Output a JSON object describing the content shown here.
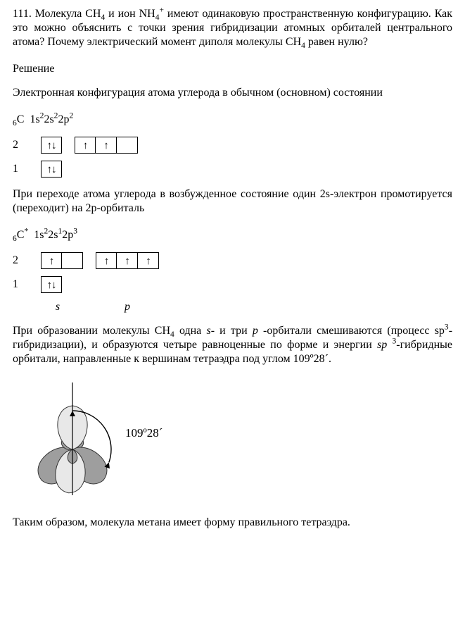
{
  "problem": {
    "number": "111.",
    "text_html": "Молекула CH<sub>4</sub> и ион NH<sub>4</sub><sup>+</sup> имеют одинаковую пространственную конфигурацию. Как это можно объяснить с точки зрения гибридизации атомных орбиталей центрального атома? Почему электрический момент диполя молекулы CH<sub>4</sub> равен нулю?"
  },
  "solution_label": "Решение",
  "p1_html": "Электронная конфигурация атома углерода в обычном (основном) состоянии",
  "config1_html": "<sub>6</sub>C&nbsp;&nbsp;1s<sup>2</sup>2s<sup>2</sup>2p<sup>2</sup>",
  "diagram1": {
    "rows": [
      {
        "label": "2",
        "groups": [
          [
            "↑↓"
          ],
          [
            "↑",
            "↑",
            ""
          ]
        ]
      },
      {
        "label": "1",
        "groups": [
          [
            "↑↓"
          ]
        ]
      }
    ]
  },
  "p2_html": "При переходе атома углерода в возбужденное состояние один 2s-электрон промотируется (переходит) на 2p-орбиталь",
  "config2_html": "<sub>6</sub>C<sup>*</sup>&nbsp;&nbsp;1s<sup>2</sup>2s<sup>1</sup>2p<sup>3</sup>",
  "diagram2": {
    "rows": [
      {
        "label": "2",
        "groups": [
          [
            "↑",
            ""
          ],
          [
            "↑",
            "↑",
            "↑"
          ]
        ]
      },
      {
        "label": "1",
        "groups": [
          [
            "↑↓"
          ]
        ]
      }
    ],
    "sublabels": {
      "s": "s",
      "p": "p"
    }
  },
  "p3_html": "При образовании молекулы CH<sub>4</sub> одна <i>s</i>- и три <i>p</i> -орбитали смешиваются (процесс sp<sup>3</sup>-гибридизации), и образуются четыре равноценные по форме и энергии <i>sp</i>&nbsp;<sup>3</sup>-гибридные орбитали, направленные к вершинам тетраэдра под углом 109º28´.",
  "figure": {
    "angle_label": "109º28´",
    "colors": {
      "lobe_fill_light": "#e8e8e8",
      "lobe_fill_dark": "#9e9e9e",
      "lobe_stroke": "#333333",
      "axis": "#000000",
      "arc": "#000000"
    }
  },
  "p4_html": "Таким образом, молекула метана имеет форму правильного тетраэдра."
}
